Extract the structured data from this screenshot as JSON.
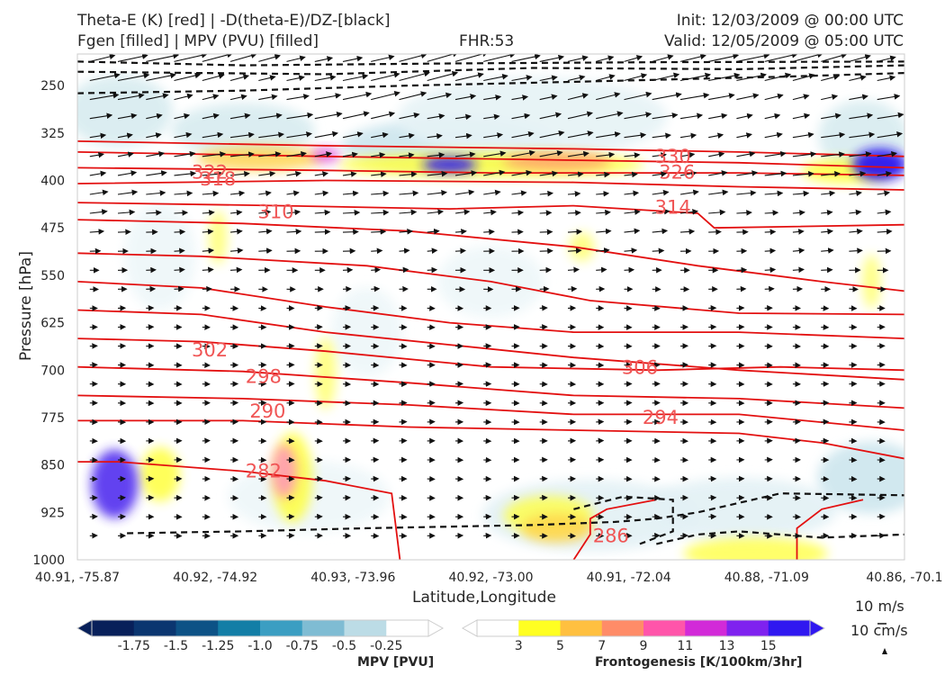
{
  "header": {
    "title_left_1": "Theta-E (K) [red] | -D(theta-E)/DZ-[black]",
    "title_left_2": "Fgen [filled] | MPV (PVU) [filled]",
    "title_center": "FHR:53",
    "title_right_1": "Init: 12/03/2009 @ 00:00 UTC",
    "title_right_2": "Valid: 12/05/2009 @ 05:00 UTC"
  },
  "chart_data": {
    "type": "cross-section",
    "xlabel": "Latitude,Longitude",
    "ylabel": "Pressure [hPa]",
    "x_ticks": [
      "40.91, -75.87",
      "40.92, -74.92",
      "40.93, -73.96",
      "40.92, -73.00",
      "40.91, -72.04",
      "40.88, -71.09",
      "40.86, -70.1"
    ],
    "y_ticks": [
      250,
      325,
      400,
      475,
      550,
      625,
      700,
      775,
      850,
      925,
      1000
    ],
    "ylim": [
      1000,
      200
    ],
    "y_inverted": true,
    "theta_e_labels": [
      {
        "value": "330",
        "x": 0.72,
        "p": 362
      },
      {
        "value": "326",
        "x": 0.725,
        "p": 387
      },
      {
        "value": "322",
        "x": 0.16,
        "p": 387
      },
      {
        "value": "318",
        "x": 0.17,
        "p": 398
      },
      {
        "value": "314",
        "x": 0.72,
        "p": 443
      },
      {
        "value": "310",
        "x": 0.24,
        "p": 450
      },
      {
        "value": "306",
        "x": 0.68,
        "p": 696
      },
      {
        "value": "302",
        "x": 0.16,
        "p": 668
      },
      {
        "value": "298",
        "x": 0.225,
        "p": 710
      },
      {
        "value": "294",
        "x": 0.705,
        "p": 775
      },
      {
        "value": "290",
        "x": 0.23,
        "p": 765
      },
      {
        "value": "286",
        "x": 0.645,
        "p": 962
      },
      {
        "value": "282",
        "x": 0.225,
        "p": 860
      }
    ],
    "mpv_colorbar": {
      "label": "MPV [PVU]",
      "ticks": [
        "-1.75",
        "-1.5",
        "-1.25",
        "-1.0",
        "-0.75",
        "-0.5",
        "-0.25"
      ],
      "colors": [
        "#08205a",
        "#0b3670",
        "#0d5286",
        "#137ea6",
        "#3b9ec2",
        "#7fbcd3",
        "#bcdce6",
        "#ffffff"
      ]
    },
    "fgen_colorbar": {
      "label": "Frontogenesis [K/100km/3hr]",
      "ticks": [
        "3",
        "5",
        "7",
        "9",
        "11",
        "13",
        "15"
      ],
      "colors": [
        "#ffffff",
        "#ffff22",
        "#ffc040",
        "#ff8c68",
        "#ff55aa",
        "#d22ad8",
        "#7f22ef",
        "#3018f0"
      ]
    },
    "vector_key": {
      "wind": "10 m/s",
      "vertical": "10 cm/s"
    }
  }
}
